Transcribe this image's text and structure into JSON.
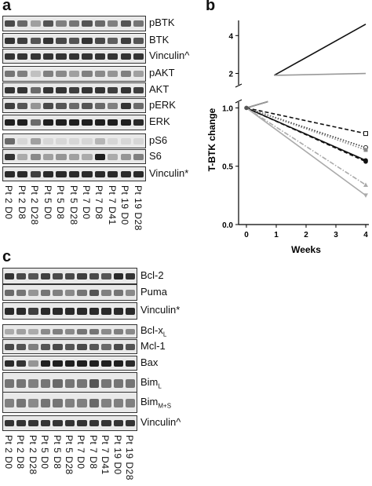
{
  "panels": {
    "a": "a",
    "b": "b",
    "c": "c"
  },
  "lanes": [
    "Pt 2 D0",
    "Pt 2 D8",
    "Pt 2 D28",
    "Pt 5 D0",
    "Pt 5 D8",
    "Pt 5 D28",
    "Pt 7 D0",
    "Pt 7 D8",
    "Pt 7 D41",
    "Pt 19 D0",
    "Pt 19 D28"
  ],
  "blot_a": [
    {
      "label": "pBTK",
      "intensity": [
        0.75,
        0.6,
        0.35,
        0.7,
        0.5,
        0.55,
        0.7,
        0.6,
        0.5,
        0.7,
        0.55
      ]
    },
    {
      "label": "BTK",
      "intensity": [
        0.85,
        0.8,
        0.7,
        0.85,
        0.75,
        0.7,
        0.85,
        0.75,
        0.65,
        0.8,
        0.7
      ]
    },
    {
      "label": "Vinculin^",
      "intensity": [
        0.85,
        0.85,
        0.85,
        0.85,
        0.85,
        0.85,
        0.85,
        0.85,
        0.85,
        0.85,
        0.85
      ]
    },
    {
      "label": "pAKT",
      "intensity": [
        0.55,
        0.5,
        0.2,
        0.5,
        0.45,
        0.35,
        0.5,
        0.45,
        0.4,
        0.5,
        0.35
      ]
    },
    {
      "label": "AKT",
      "intensity": [
        0.85,
        0.85,
        0.6,
        0.85,
        0.85,
        0.8,
        0.85,
        0.85,
        0.8,
        0.85,
        0.8
      ]
    },
    {
      "label": "pERK",
      "intensity": [
        0.8,
        0.7,
        0.4,
        0.75,
        0.7,
        0.6,
        0.7,
        0.6,
        0.5,
        0.85,
        0.6
      ]
    },
    {
      "label": "ERK",
      "intensity": [
        0.95,
        0.95,
        0.6,
        0.95,
        0.95,
        0.95,
        0.95,
        0.95,
        0.95,
        0.95,
        0.9
      ]
    },
    {
      "label": "pS6",
      "intensity": [
        0.6,
        0.1,
        0.35,
        0.1,
        0.1,
        0.1,
        0.1,
        0.25,
        0.1,
        0.1,
        0.1
      ]
    },
    {
      "label": "S6",
      "intensity": [
        0.85,
        0.3,
        0.45,
        0.35,
        0.4,
        0.35,
        0.3,
        0.95,
        0.3,
        0.4,
        0.5
      ]
    },
    {
      "label": "Vinculin*",
      "intensity": [
        0.9,
        0.9,
        0.8,
        0.9,
        0.9,
        0.9,
        0.9,
        0.9,
        0.9,
        0.9,
        0.9
      ]
    }
  ],
  "blot_c": [
    {
      "label": "Bcl-2",
      "sub": "",
      "intensity": [
        0.85,
        0.75,
        0.7,
        0.8,
        0.75,
        0.75,
        0.8,
        0.75,
        0.7,
        0.9,
        0.85
      ]
    },
    {
      "label": "Puma",
      "sub": "",
      "intensity": [
        0.6,
        0.55,
        0.4,
        0.55,
        0.5,
        0.45,
        0.55,
        0.7,
        0.5,
        0.55,
        0.45
      ]
    },
    {
      "label": "Vinculin*",
      "sub": "",
      "intensity": [
        0.9,
        0.9,
        0.8,
        0.9,
        0.9,
        0.9,
        0.9,
        0.9,
        0.9,
        0.9,
        0.9
      ]
    },
    {
      "label": "Bcl-x",
      "sub": "L",
      "intensity": [
        0.3,
        0.35,
        0.3,
        0.45,
        0.5,
        0.45,
        0.55,
        0.55,
        0.45,
        0.5,
        0.45
      ]
    },
    {
      "label": "Mcl-1",
      "sub": "",
      "intensity": [
        0.75,
        0.7,
        0.5,
        0.7,
        0.75,
        0.7,
        0.75,
        0.7,
        0.6,
        0.75,
        0.7
      ]
    },
    {
      "label": "Bax",
      "sub": "",
      "intensity": [
        0.9,
        0.85,
        0.4,
        0.95,
        0.95,
        0.95,
        0.95,
        0.95,
        0.95,
        0.95,
        0.9
      ]
    },
    {
      "label": "Bim",
      "sub": "L",
      "intensity": [
        0.55,
        0.55,
        0.5,
        0.55,
        0.6,
        0.55,
        0.55,
        0.7,
        0.55,
        0.55,
        0.55
      ]
    },
    {
      "label": "Bim",
      "sub": "M+S",
      "intensity": [
        0.5,
        0.55,
        0.45,
        0.55,
        0.55,
        0.5,
        0.5,
        0.6,
        0.5,
        0.5,
        0.5
      ]
    },
    {
      "label": "Vinculin^",
      "sub": "",
      "intensity": [
        0.85,
        0.85,
        0.85,
        0.85,
        0.85,
        0.85,
        0.85,
        0.85,
        0.85,
        0.85,
        0.85
      ]
    }
  ],
  "chart_data": {
    "type": "line",
    "xlabel": "Weeks",
    "ylabel": "T-BTK change",
    "x_ticks": [
      0,
      1,
      2,
      3,
      4
    ],
    "y_ticks_lower": [
      "0.0",
      "0.5",
      "1.0"
    ],
    "y_ticks_upper": [
      "2",
      "4"
    ],
    "ylim_lower": [
      0,
      1.05
    ],
    "ylim_upper": [
      1.4,
      4.8
    ],
    "broken_axis": true,
    "series": [
      {
        "color": "#111111",
        "style": "solid",
        "marker": "none",
        "x": [
          0,
          4
        ],
        "y": [
          1.0,
          4.6
        ]
      },
      {
        "color": "#999999",
        "style": "solid",
        "marker": "none",
        "x": [
          0,
          4
        ],
        "y": [
          1.0,
          2.0
        ]
      },
      {
        "color": "#111111",
        "style": "dashed",
        "marker": "open-square",
        "x": [
          0,
          4
        ],
        "y": [
          1.0,
          0.78
        ]
      },
      {
        "color": "#333333",
        "style": "dotted",
        "marker": "open-circle",
        "x": [
          0,
          4
        ],
        "y": [
          1.0,
          0.66
        ]
      },
      {
        "color": "#888888",
        "style": "dotted",
        "marker": "filled-square",
        "x": [
          0,
          4
        ],
        "y": [
          1.0,
          0.64
        ]
      },
      {
        "color": "#111111",
        "style": "solid",
        "marker": "filled-circle",
        "x": [
          0,
          4
        ],
        "y": [
          1.0,
          0.55
        ]
      },
      {
        "color": "#111111",
        "style": "dashed",
        "marker": "filled-circle",
        "x": [
          0,
          4
        ],
        "y": [
          1.0,
          0.54
        ]
      },
      {
        "color": "#aaaaaa",
        "style": "dashdot",
        "marker": "filled-triangle",
        "x": [
          0,
          4
        ],
        "y": [
          1.0,
          0.34
        ]
      },
      {
        "color": "#aaaaaa",
        "style": "solid",
        "marker": "filled-triangle-down",
        "x": [
          0,
          4
        ],
        "y": [
          1.0,
          0.25
        ]
      }
    ]
  }
}
